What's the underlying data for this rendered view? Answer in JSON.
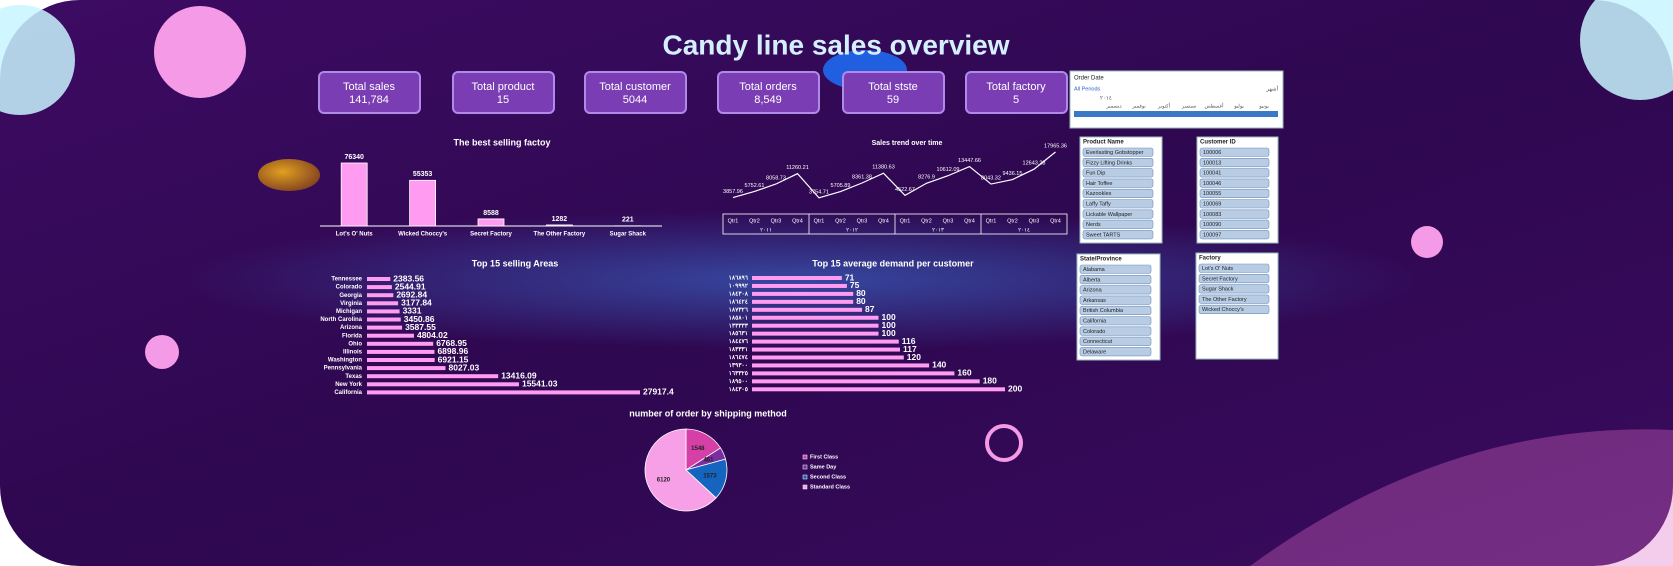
{
  "title": "Candy line sales overview",
  "kpis": [
    {
      "label": "Total sales",
      "value": "141,784"
    },
    {
      "label": "Total product",
      "value": "15"
    },
    {
      "label": "Total customer",
      "value": "5044"
    },
    {
      "label": "Total orders",
      "value": "8,549"
    },
    {
      "label": "Total stste",
      "value": "59"
    },
    {
      "label": "Total factory",
      "value": "5"
    }
  ],
  "chart_data": [
    {
      "type": "bar",
      "title": "The best selling factoy",
      "color": "#ff9cf2",
      "categories": [
        "Lot's O' Nuts",
        "Wicked Choccy's",
        "Secret Factory",
        "The Other Factory",
        "Sugar Shack"
      ],
      "values": [
        76340,
        55353,
        8588,
        1282,
        221
      ]
    },
    {
      "type": "line",
      "title": "Sales trend over time",
      "color": "#ffffff",
      "categories": [
        "Qtr1",
        "Qtr2",
        "Qtr3",
        "Qtr4",
        "Qtr1",
        "Qtr2",
        "Qtr3",
        "Qtr4",
        "Qtr1",
        "Qtr2",
        "Qtr3",
        "Qtr4",
        "Qtr1",
        "Qtr2",
        "Qtr3",
        "Qtr4"
      ],
      "groups": [
        "٢٠١١",
        "٢٠١٢",
        "٢٠١٣",
        "٢٠١٤"
      ],
      "values": [
        3857.96,
        5752.61,
        8058.73,
        11260.21,
        3754.71,
        5705.89,
        8361.38,
        11380.63,
        4522.67,
        8276.9,
        10612.09,
        13447.66,
        8043.32,
        9436.15,
        12643.28,
        17965.36
      ]
    },
    {
      "type": "bar",
      "orientation": "horizontal",
      "title": "Top 15 selling Areas",
      "color": "#ff9cf2",
      "categories": [
        "Tennessee",
        "Colorado",
        "Georgia",
        "Virginia",
        "Michigan",
        "North Carolina",
        "Arizona",
        "Florida",
        "Ohio",
        "Illinois",
        "Washington",
        "Pennsylvania",
        "Texas",
        "New York",
        "California"
      ],
      "values": [
        2383.56,
        2544.91,
        2692.84,
        3177.84,
        3331,
        3450.86,
        3587.55,
        4804.02,
        6768.95,
        6898.96,
        6921.15,
        8027.03,
        13416.09,
        15541.03,
        27917.4
      ]
    },
    {
      "type": "bar",
      "orientation": "horizontal",
      "title": "Top 15 average demand per customer",
      "color": "#ff9cf2",
      "categories": [
        "١٨٦٨٩٦",
        "١٠٩٩٩٢",
        "١٨٤٣٠٨",
        "١٨٦٤٢٤",
        "١٨٧٣٢٦",
        "١٨٥٨٠١",
        "١٣٣٣٣٣",
        "١٨٥٦٣١",
        "١٨٤٤٧٦",
        "١٨٣٣٣١",
        "١٨٦٤٧٤",
        "١٣٩٣٠٠",
        "١٦٣٣٢٥",
        "١٨٩٥٠٠",
        "١٨٤٣٠٥"
      ],
      "values": [
        71,
        75,
        80,
        80,
        87,
        100,
        100,
        100,
        116,
        117,
        120,
        140,
        160,
        180,
        200
      ]
    },
    {
      "type": "pie",
      "title": "number of order by shipping method",
      "categories": [
        "First Class",
        "Same Day",
        "Second Class",
        "Standard Class"
      ],
      "colors": [
        "#d63fa6",
        "#7a2fa0",
        "#1565c0",
        "#f7a0e8"
      ],
      "values": [
        1548,
        461,
        1573,
        6120
      ]
    }
  ],
  "timeline": {
    "title": "Order Date",
    "period": "All Periods",
    "unit": "أشهر",
    "year": "٢٠١٤",
    "months": [
      "يونيو",
      "يوليو",
      "أغسطس",
      "سبتمبر",
      "أكتوبر",
      "نوفمبر",
      "ديسمبر"
    ]
  },
  "slicers": [
    {
      "title": "Product Name",
      "items": [
        "Everlasting Gobstopper",
        "Fizzy Lifting Drinks",
        "Fun Dip",
        "Hair Toffee",
        "Kazookles",
        "Laffy Taffy",
        "Lickable Wallpaper",
        "Nerds",
        "Sweet TARTS"
      ]
    },
    {
      "title": "Customer ID",
      "items": [
        "100006",
        "100013",
        "100041",
        "100046",
        "100055",
        "100069",
        "100083",
        "100090",
        "100097"
      ]
    },
    {
      "title": "State/Province",
      "items": [
        "Alabama",
        "Alberta",
        "Arizona",
        "Arkansas",
        "British Columbia",
        "California",
        "Colorado",
        "Connecticut",
        "Delaware"
      ]
    },
    {
      "title": "Factory",
      "items": [
        "Lot's O' Nuts",
        "Secret Factory",
        "Sugar Shack",
        "The Other Factory",
        "Wicked Choccy's"
      ]
    }
  ]
}
